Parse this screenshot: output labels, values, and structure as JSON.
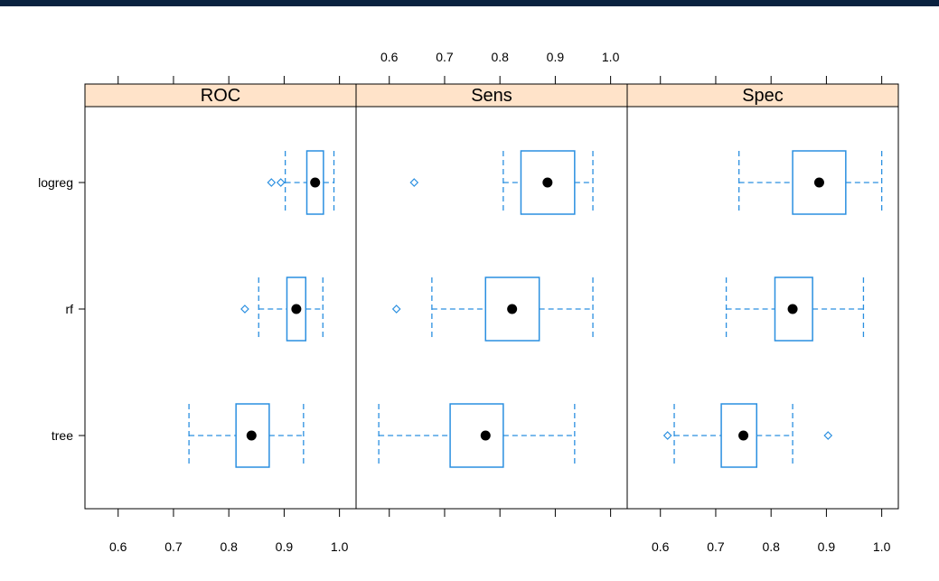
{
  "chart_data": {
    "type": "boxplot",
    "panels": [
      "ROC",
      "Sens",
      "Spec"
    ],
    "categories": [
      "logreg",
      "rf",
      "tree"
    ],
    "xticks": [
      "0.6",
      "0.7",
      "0.8",
      "0.9",
      "1.0"
    ],
    "xlim": [
      0.54,
      1.03
    ],
    "colors": {
      "box": "#2a8fe0",
      "median": "#000000",
      "strip_fill": "#ffe3c9",
      "topbar": "#0a2240"
    },
    "boxes": {
      "ROC": {
        "logreg": {
          "whisker_low": 0.902,
          "q1": 0.941,
          "median": 0.956,
          "q3": 0.971,
          "whisker_high": 0.99,
          "outliers": [
            0.877,
            0.894
          ]
        },
        "rf": {
          "whisker_low": 0.854,
          "q1": 0.905,
          "median": 0.922,
          "q3": 0.939,
          "whisker_high": 0.97,
          "outliers": [
            0.829
          ]
        },
        "tree": {
          "whisker_low": 0.728,
          "q1": 0.813,
          "median": 0.841,
          "q3": 0.873,
          "whisker_high": 0.935,
          "outliers": []
        }
      },
      "Sens": {
        "logreg": {
          "whisker_low": 0.806,
          "q1": 0.838,
          "median": 0.886,
          "q3": 0.935,
          "whisker_high": 0.968,
          "outliers": [
            0.645
          ]
        },
        "rf": {
          "whisker_low": 0.677,
          "q1": 0.774,
          "median": 0.822,
          "q3": 0.871,
          "whisker_high": 0.968,
          "outliers": [
            0.613
          ]
        },
        "tree": {
          "whisker_low": 0.581,
          "q1": 0.71,
          "median": 0.774,
          "q3": 0.806,
          "whisker_high": 0.935,
          "outliers": []
        }
      },
      "Spec": {
        "logreg": {
          "whisker_low": 0.742,
          "q1": 0.839,
          "median": 0.887,
          "q3": 0.935,
          "whisker_high": 1.0,
          "outliers": []
        },
        "rf": {
          "whisker_low": 0.719,
          "q1": 0.807,
          "median": 0.839,
          "q3": 0.875,
          "whisker_high": 0.967,
          "outliers": []
        },
        "tree": {
          "whisker_low": 0.625,
          "q1": 0.71,
          "median": 0.75,
          "q3": 0.774,
          "whisker_high": 0.839,
          "outliers": [
            0.613,
            0.903
          ]
        }
      }
    },
    "grid": false,
    "axis_positions": {
      "ROC": "bottom",
      "Sens": "top",
      "Spec": "bottom"
    }
  }
}
